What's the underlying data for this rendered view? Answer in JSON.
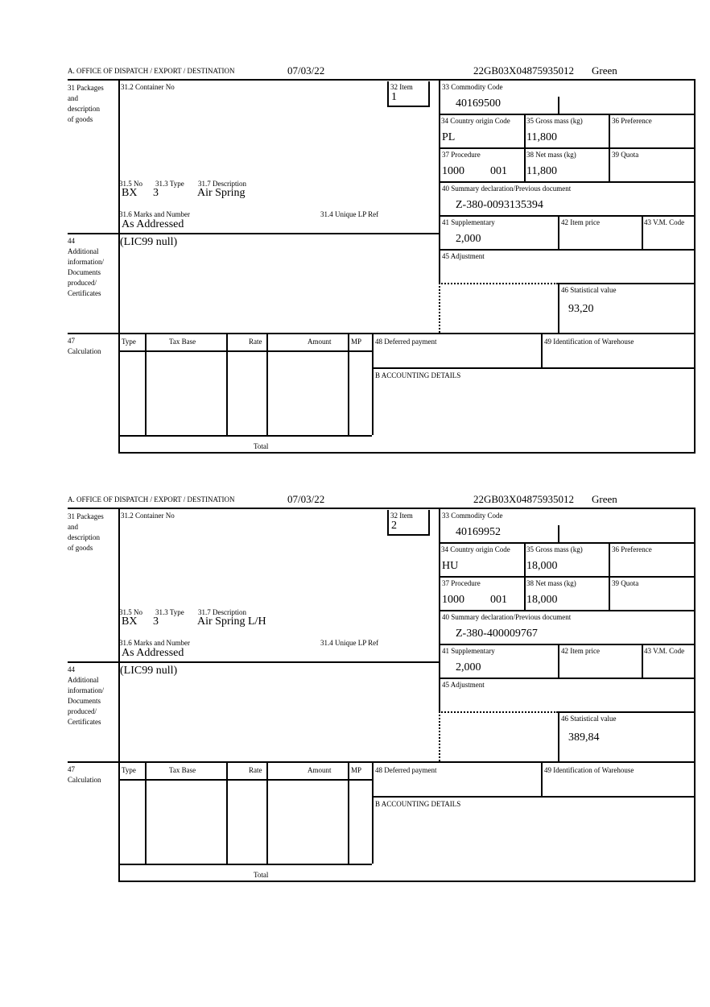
{
  "labels": {
    "office": "A.  OFFICE OF DISPATCH / EXPORT / DESTINATION",
    "packages": [
      "31 Packages",
      "and",
      "description",
      "of goods"
    ],
    "container": "31.2 Container No",
    "item": "32 Item",
    "no": "31.5 No",
    "type": "31.3 Type",
    "description": "31.7 Description",
    "marks": "31.6 Marks and Number",
    "unique_ref": "31.4 Unique LP Ref",
    "additional": [
      "44",
      "Additional",
      "information/",
      "Documents",
      "produced/",
      "Certificates"
    ],
    "commodity": "33 Commodity Code",
    "country": "34 Country origin Code",
    "gross": "35 Gross mass (kg)",
    "preference": "36 Preference",
    "procedure": "37 Procedure",
    "net": "38 Net mass (kg)",
    "quota": "39 Quota",
    "summary": "40 Summary declaration/Previous document",
    "supplementary": "41 Supplementary",
    "item_price": "42 Item price",
    "vm_code": "43 V.M. Code",
    "adjustment": "45 Adjustment",
    "statistical": "46 Statistical value",
    "calculation": [
      "47",
      "Calculation"
    ],
    "calc_headers": [
      "Type",
      "Tax Base",
      "Rate",
      "Amount",
      "MP"
    ],
    "total": "Total",
    "deferred": "48 Deferred payment",
    "warehouse": "49 Identification of Warehouse",
    "accounting": "B ACCOUNTING DETAILS"
  },
  "items": [
    {
      "date": "07/03/22",
      "reference": "22GB03X04875935012",
      "route": "Green",
      "item_no": "1",
      "no": "BX",
      "type": "3",
      "description": "Air Spring",
      "marks": "As Addressed",
      "additional": "(LIC99 null)",
      "commodity": "40169500",
      "country": "PL",
      "gross": "11,800",
      "procedure": "1000",
      "procedure_ext": "001",
      "net": "11,800",
      "summary": "Z-380-0093135394",
      "supplementary": "2,000",
      "statistical": "93,20"
    },
    {
      "date": "07/03/22",
      "reference": "22GB03X04875935012",
      "route": "Green",
      "item_no": "2",
      "no": "BX",
      "type": "3",
      "description": "Air Spring L/H",
      "marks": "As Addressed",
      "additional": "(LIC99 null)",
      "commodity": "40169952",
      "country": "HU",
      "gross": "18,000",
      "procedure": "1000",
      "procedure_ext": "001",
      "net": "18,000",
      "summary": "Z-380-400009767",
      "supplementary": "2,000",
      "statistical": "389,84"
    }
  ]
}
